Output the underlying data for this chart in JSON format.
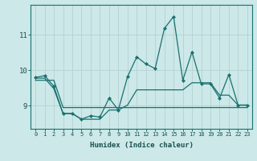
{
  "xlabel": "Humidex (Indice chaleur)",
  "background_color": "#cce8e8",
  "grid_color": "#b8d4d4",
  "line_color": "#1a7070",
  "x_values": [
    0,
    1,
    2,
    3,
    4,
    5,
    6,
    7,
    8,
    9,
    10,
    11,
    12,
    13,
    14,
    15,
    16,
    17,
    18,
    19,
    20,
    21,
    22,
    23
  ],
  "line1_y": [
    9.8,
    9.85,
    9.55,
    8.78,
    8.78,
    8.62,
    8.72,
    8.68,
    9.22,
    8.88,
    9.82,
    10.38,
    10.18,
    10.05,
    11.18,
    11.52,
    9.72,
    10.52,
    9.62,
    9.62,
    9.22,
    9.88,
    9.02,
    9.02
  ],
  "line2_y": [
    9.78,
    9.78,
    9.48,
    8.78,
    8.78,
    8.62,
    8.62,
    8.62,
    8.88,
    8.88,
    9.02,
    9.45,
    9.45,
    9.45,
    9.45,
    9.45,
    9.45,
    9.65,
    9.65,
    9.65,
    9.3,
    9.3,
    9.02,
    9.02
  ],
  "line3_y": [
    9.72,
    9.72,
    9.72,
    8.95,
    8.95,
    8.95,
    8.95,
    8.95,
    8.95,
    8.95,
    8.95,
    8.95,
    8.95,
    8.95,
    8.95,
    8.95,
    8.95,
    8.95,
    8.95,
    8.95,
    8.95,
    8.95,
    8.95,
    8.95
  ],
  "ylim_min": 8.35,
  "ylim_max": 11.85,
  "yticks": [
    9,
    10,
    11
  ],
  "xticks": [
    0,
    1,
    2,
    3,
    4,
    5,
    6,
    7,
    8,
    9,
    10,
    11,
    12,
    13,
    14,
    15,
    16,
    17,
    18,
    19,
    20,
    21,
    22,
    23
  ]
}
